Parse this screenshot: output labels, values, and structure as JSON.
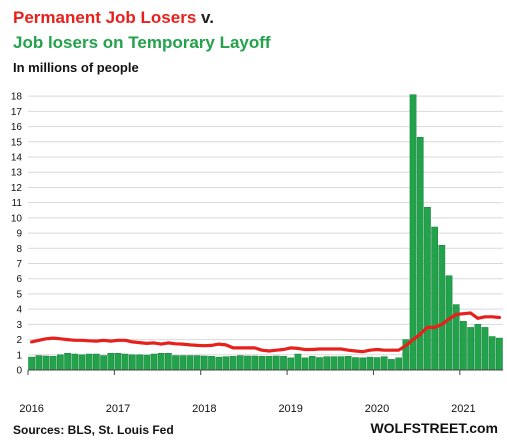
{
  "header": {
    "title_red": "Permanent Job Losers",
    "title_sep": "v.",
    "title_green": "Job losers on Temporary Layoff",
    "subtitle": "In millions of people"
  },
  "footer": {
    "source": "Sources: BLS, St. Louis Fed",
    "brand": "WOLFSTREET.com"
  },
  "colors": {
    "bars": "#22a24b",
    "bar_edge": "#17803a",
    "line": "#e8201c",
    "grid": "#d9d9d9"
  },
  "chart_data": {
    "type": "bar",
    "x_start": "2016-01",
    "x_end": "2021-03",
    "x_tick_labels": [
      "2016",
      "2017",
      "2018",
      "2019",
      "2020",
      "2021"
    ],
    "y_tick_labels": [
      "0",
      "1",
      "2",
      "3",
      "4",
      "5",
      "6",
      "7",
      "8",
      "9",
      "10",
      "11",
      "12",
      "13",
      "14",
      "15",
      "16",
      "17",
      "18"
    ],
    "ylim": [
      0,
      18.8
    ],
    "grid": true,
    "series": [
      {
        "kind": "bar",
        "values": [
          0.85,
          0.95,
          0.92,
          0.9,
          1.0,
          1.1,
          1.05,
          1.0,
          1.05,
          1.05,
          0.95,
          1.1,
          1.1,
          1.05,
          1.0,
          1.0,
          0.98,
          1.05,
          1.1,
          1.1,
          0.95,
          0.95,
          0.95,
          0.95,
          0.92,
          0.9,
          0.85,
          0.88,
          0.9,
          0.95,
          0.92,
          0.92,
          0.9,
          0.9,
          0.92,
          0.9,
          0.8,
          1.05,
          0.8,
          0.9,
          0.82,
          0.88,
          0.88,
          0.88,
          0.9,
          0.82,
          0.8,
          0.85,
          0.82,
          0.88,
          0.7,
          0.8,
          2.0,
          18.1,
          15.3,
          10.7,
          9.4,
          8.2,
          6.2,
          4.3,
          3.2,
          2.8,
          3.0,
          2.8,
          2.2,
          2.1
        ]
      },
      {
        "kind": "line",
        "values": [
          1.85,
          1.95,
          2.05,
          2.1,
          2.05,
          2.0,
          1.95,
          1.95,
          1.92,
          1.9,
          1.95,
          1.9,
          1.95,
          1.95,
          1.85,
          1.8,
          1.75,
          1.78,
          1.7,
          1.78,
          1.72,
          1.7,
          1.65,
          1.62,
          1.6,
          1.62,
          1.7,
          1.65,
          1.45,
          1.45,
          1.45,
          1.45,
          1.3,
          1.25,
          1.3,
          1.35,
          1.45,
          1.42,
          1.35,
          1.35,
          1.38,
          1.38,
          1.38,
          1.38,
          1.3,
          1.25,
          1.2,
          1.3,
          1.35,
          1.3,
          1.3,
          1.3,
          1.6,
          2.0,
          2.35,
          2.8,
          2.8,
          3.0,
          3.35,
          3.65,
          3.7,
          3.75,
          3.4,
          3.5,
          3.5,
          3.45
        ]
      }
    ]
  }
}
